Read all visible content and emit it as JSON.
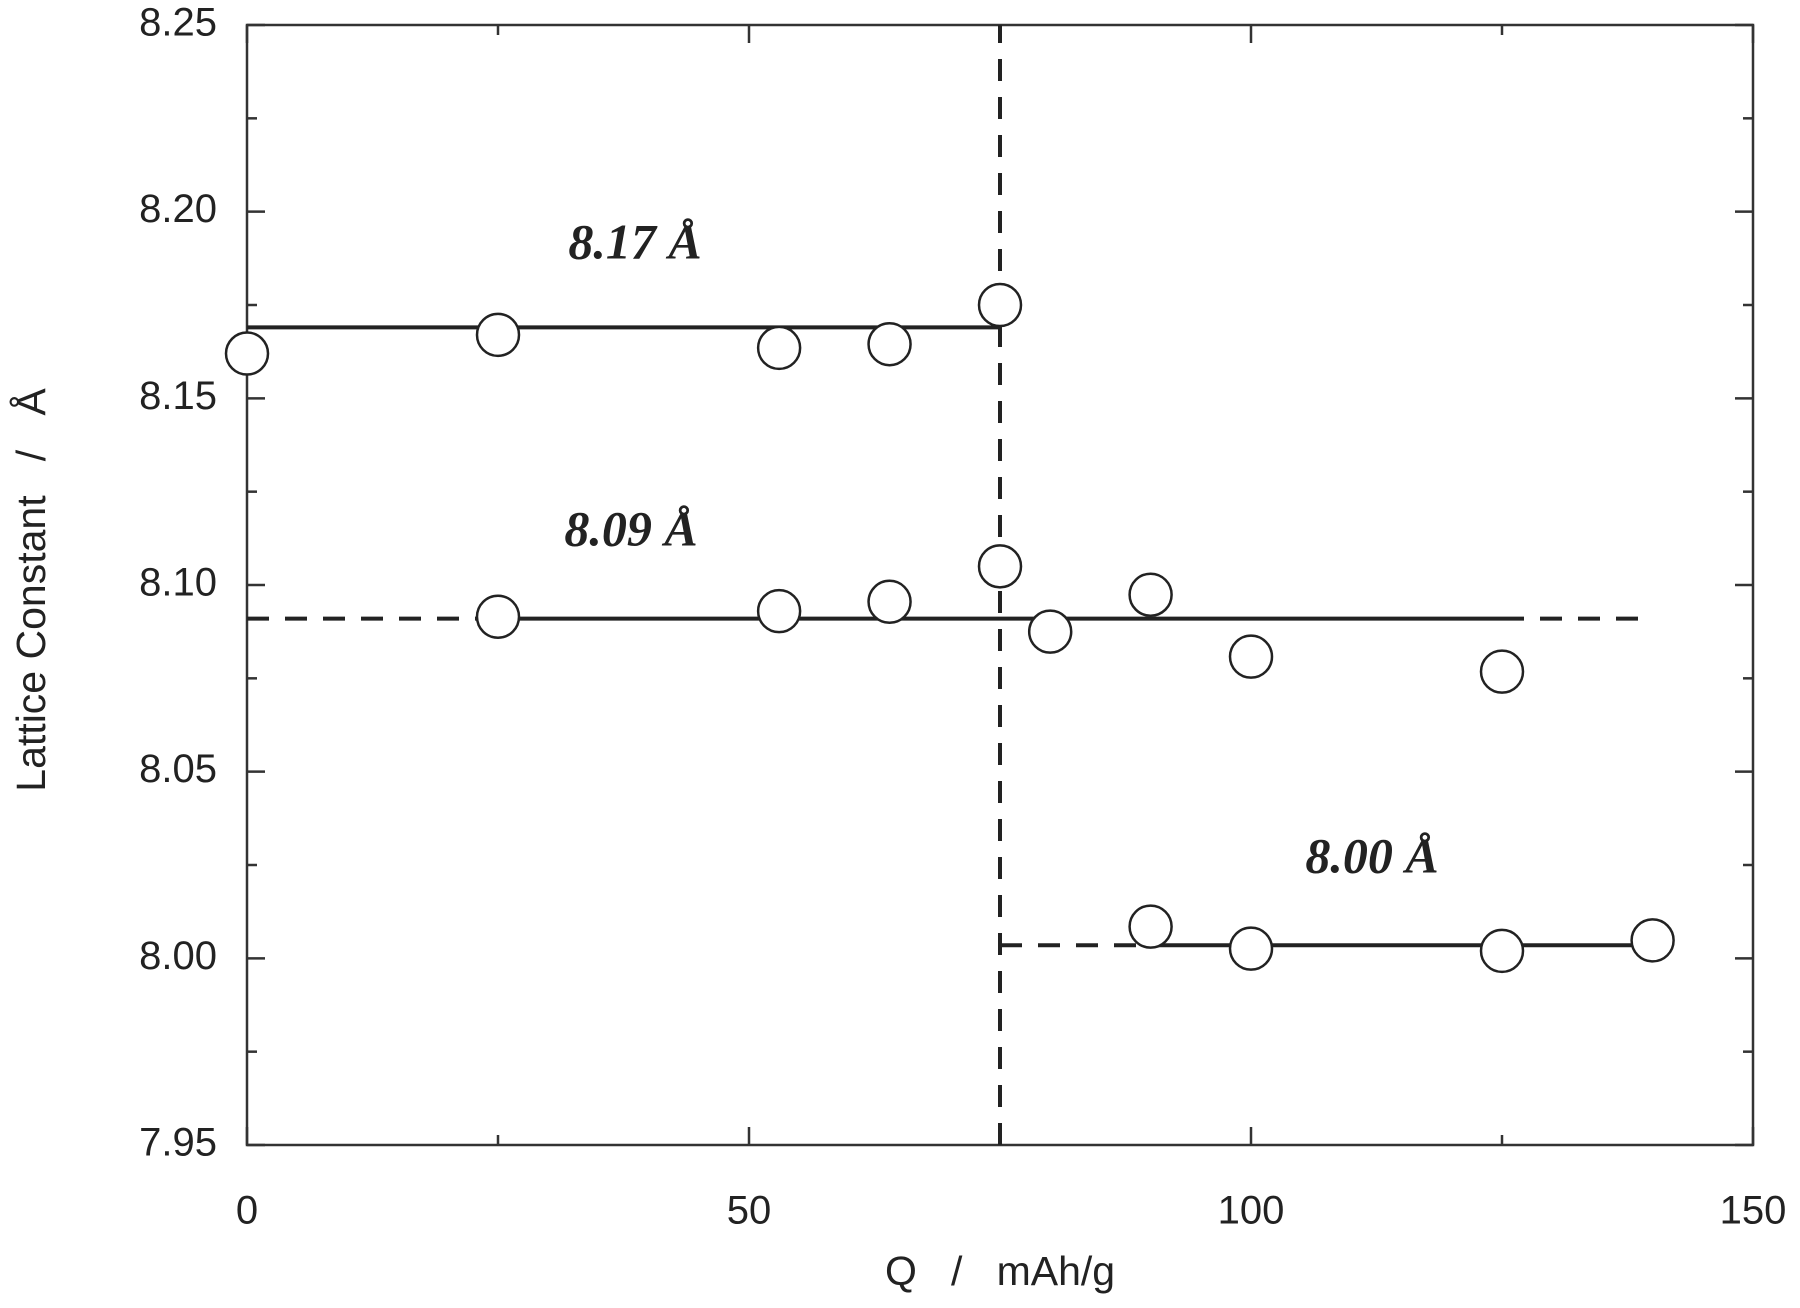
{
  "chart_data": {
    "type": "scatter",
    "x_label": "Q   /   mAh/g",
    "y_label": "Lattice Constant   /   Å",
    "annotations": [
      "8.17 Å",
      "8.09 Å",
      "8.00 Å"
    ],
    "x": [
      0,
      25,
      53,
      64,
      75,
      75,
      25,
      53,
      64,
      80,
      90,
      100,
      125,
      90,
      100,
      125,
      140
    ],
    "values": [
      8.162,
      8.167,
      8.1635,
      8.1645,
      8.175,
      8.105,
      8.0915,
      8.093,
      8.0955,
      8.0875,
      8.0974,
      8.0808,
      8.0768,
      8.0085,
      8.0026,
      8.002,
      8.0048
    ],
    "color": "#222222",
    "xlim": [
      0,
      150
    ],
    "xticks": [
      0,
      50,
      100,
      150
    ],
    "xminor_ticks": [
      25,
      75,
      125
    ],
    "ylim": [
      7.95,
      8.25
    ],
    "yticks": [
      7.95,
      {
        "value": 8,
        "label": "8.00"
      },
      8.05,
      {
        "value": 8.1,
        "label": "8.10"
      },
      8.15,
      {
        "value": 8.2,
        "label": "8.20"
      },
      8.25
    ],
    "yminor_ticks": [
      7.975,
      8.025,
      8.075,
      8.125,
      8.175,
      8.225
    ],
    "reference_lines": [
      {
        "x": [
          0,
          75
        ],
        "y": [
          8.169,
          8.169
        ],
        "style": "solid"
      },
      {
        "x": [
          0,
          25
        ],
        "y": [
          8.091,
          8.091
        ],
        "style": "dashed"
      },
      {
        "x": [
          25,
          125
        ],
        "y": [
          8.091,
          8.091
        ],
        "style": "solid"
      },
      {
        "x": [
          125,
          140
        ],
        "y": [
          8.091,
          8.091
        ],
        "style": "dashed"
      },
      {
        "x": [
          75,
          90
        ],
        "y": [
          8.0035,
          8.0035
        ],
        "style": "dashed"
      },
      {
        "x": [
          90,
          140
        ],
        "y": [
          8.0035,
          8.0035
        ],
        "style": "solid"
      },
      {
        "x": [
          75,
          75
        ],
        "y": [
          7.95,
          8.25
        ],
        "style": "dashed"
      }
    ],
    "grid": false
  }
}
